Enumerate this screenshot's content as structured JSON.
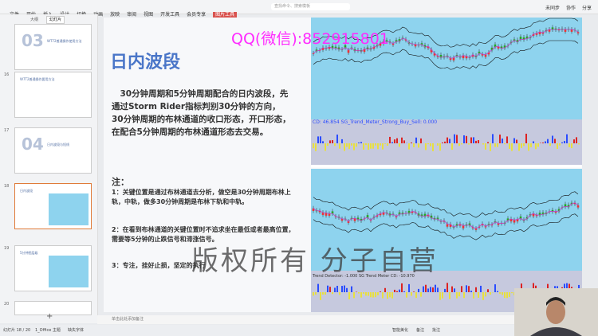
{
  "menu": [
    "文件",
    "开始",
    "插入",
    "设计",
    "切换",
    "动画",
    "放映",
    "审阅",
    "视图",
    "开发工具",
    "会员专享",
    "图片工具"
  ],
  "search": "查找命令、搜索模板",
  "top_right": [
    "未同步",
    "协作",
    "分享"
  ],
  "panel_tabs": [
    "大纲",
    "幻灯片"
  ],
  "thumbnails": [
    {
      "number": "",
      "big": "03",
      "caption": "WT72普通操作使用方法"
    },
    {
      "number": "16",
      "big": "",
      "caption": "W7T2普通操作要用方法"
    },
    {
      "number": "17",
      "big": "04",
      "caption": "日内波段与短线"
    },
    {
      "number": "18",
      "big": "",
      "caption": "日内波段"
    },
    {
      "number": "19",
      "big": "",
      "caption": "5分钟图层级"
    },
    {
      "number": "20",
      "big": "",
      "caption": ""
    }
  ],
  "slide": {
    "title": "日内波段",
    "body": "30分钟周期和5分钟周期配合的日内波段，先通过Storm Rider指标判别30分钟的方向，30分钟周期的布林通道的收口形态，开口形态，在配合5分钟周期的布林通道形态去交易。",
    "note_heading": "注：",
    "notes": [
      "1：关键位置是通过布林通道去分析，做空是30分钟周期布林上轨，中轨，做多30分钟周期是布林下轨和中轨。",
      "2：在看到布林通道的关键位置时不追求坐在最低或者最高位置，需要等5分钟的止跌信号和滞涨信号。",
      "3：专注，挂好止损，坚定的执行"
    ],
    "chart1_label": "CD: 46.854  SG_Trend_Meter_Strong_Buy_Sell: 0.000",
    "chart2_label": "Trend Detector: -1.000  SG Trend Meter CD: -10.970"
  },
  "watermarks": [
    "QQ(微信):852915801",
    "版权所有 分子自营"
  ],
  "notes_placeholder": "单击此处添加备注",
  "status": {
    "slide": "幻灯片 18 / 20",
    "theme": "1_Office 主题",
    "font": "缺失字体",
    "right": [
      "智能美化",
      "备注",
      "批注"
    ]
  }
}
